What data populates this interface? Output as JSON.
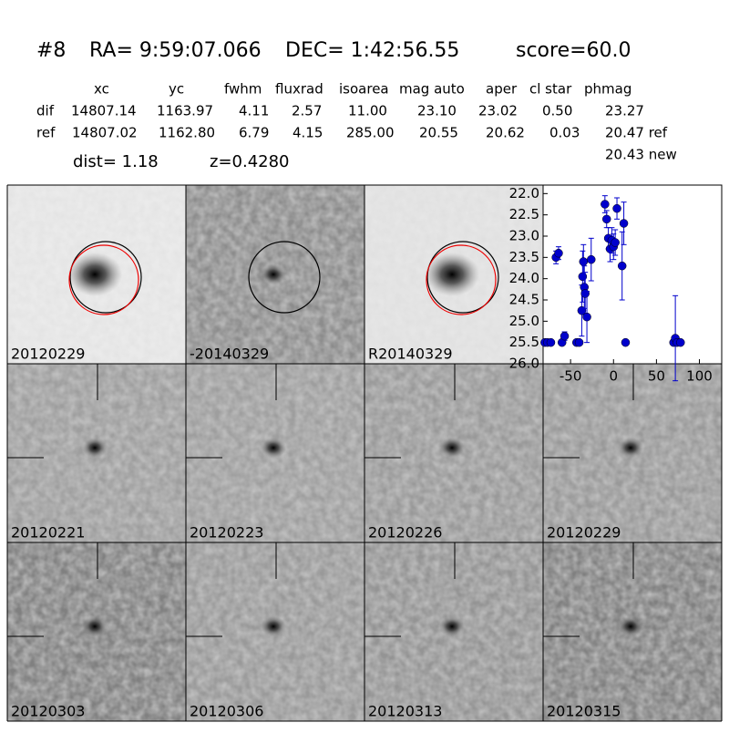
{
  "header": {
    "id": "#8",
    "ra": "RA= 9:59:07.066",
    "dec": "DEC= 1:42:56.55",
    "score": "score=60.0"
  },
  "table": {
    "columns": [
      "xc",
      "yc",
      "fwhm",
      "fluxrad",
      "isoarea",
      "mag auto",
      "aper",
      "cl star",
      "phmag"
    ],
    "rows": [
      [
        "dif",
        "14807.14",
        "1163.97",
        "4.11",
        "2.57",
        "11.00",
        "23.10",
        "23.02",
        "0.50",
        "23.27"
      ],
      [
        "ref",
        "14807.02",
        "1162.80",
        "6.79",
        "4.15",
        "285.00",
        "20.55",
        "20.62",
        "0.03",
        "20.47 ref"
      ]
    ],
    "extra": "20.43 new"
  },
  "dist": "dist=  1.18",
  "z": "z=0.4280",
  "panels": [
    {
      "label": "20120229"
    },
    {
      "label": "-20140329"
    },
    {
      "label": "R20140329"
    },
    {
      "label": "20120221"
    },
    {
      "label": "20120223"
    },
    {
      "label": "20120226"
    },
    {
      "label": "20120229",
      "color": "#ff0000"
    },
    {
      "label": "20120303"
    },
    {
      "label": "20120306"
    },
    {
      "label": "20120313"
    },
    {
      "label": "20120315"
    }
  ],
  "chart_data": {
    "type": "scatter",
    "color": "#0000cc",
    "x": [
      -80,
      -77,
      -73,
      -67,
      -64,
      -60,
      -57,
      -43,
      -40,
      -37,
      -36,
      -35,
      -34,
      -33,
      -31,
      -26,
      -10,
      -8,
      -6,
      -4,
      -2,
      0,
      2,
      4,
      10,
      12,
      14,
      70,
      72,
      74,
      78
    ],
    "y": [
      25.5,
      25.5,
      25.5,
      23.5,
      23.4,
      25.5,
      25.35,
      25.5,
      25.5,
      24.75,
      23.95,
      23.6,
      24.2,
      24.35,
      24.9,
      23.55,
      22.25,
      22.6,
      23.05,
      23.3,
      23.1,
      23.25,
      23.15,
      22.35,
      23.7,
      22.7,
      25.5,
      25.5,
      25.4,
      25.5,
      25.5
    ],
    "errors": [
      0.05,
      0.05,
      0.05,
      0.15,
      0.15,
      0.05,
      0.1,
      0.05,
      0.05,
      0.6,
      0.6,
      0.4,
      0.5,
      0.5,
      0.6,
      0.5,
      0.2,
      0.2,
      0.25,
      0.3,
      0.3,
      0.3,
      0.3,
      0.25,
      0.8,
      0.5,
      0.05,
      0.05,
      1.0,
      0.05,
      0.05
    ],
    "xlim": [
      -82,
      126
    ],
    "ylim": [
      26.0,
      21.8
    ],
    "xticks": [
      -50,
      0,
      50,
      100
    ],
    "yticks": [
      {
        "value": 22,
        "label": "22.0"
      },
      22.5,
      {
        "value": 23,
        "label": "23.0"
      },
      23.5,
      {
        "value": 24,
        "label": "24.0"
      },
      24.5,
      {
        "value": 25,
        "label": "25.0"
      },
      25.5,
      {
        "value": 26,
        "label": "26.0"
      }
    ]
  }
}
